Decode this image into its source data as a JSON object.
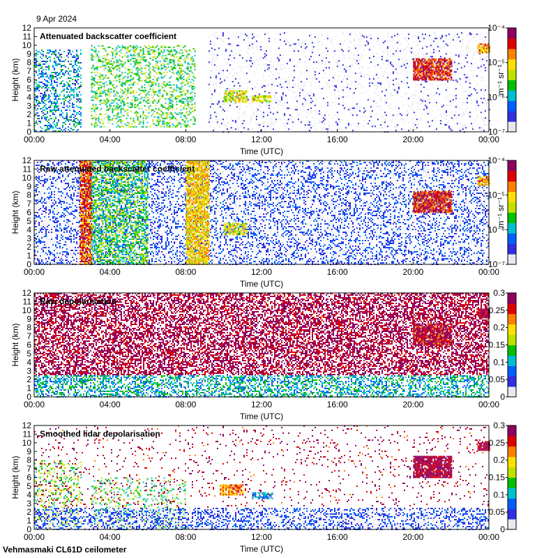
{
  "header": {
    "date": "9 Apr 2024"
  },
  "footer": {
    "site": "Vehmasmaki CL61D ceilometer"
  },
  "colors": {
    "plot_bg": "#ffffff",
    "axis": "#000000"
  },
  "chart_data": [
    {
      "type": "heatmap",
      "title": "Attenuated backscatter coefficient",
      "xlabel": "Time (UTC)",
      "ylabel": "Height (km)",
      "x_ticks": [
        "00:00",
        "04:00",
        "08:00",
        "12:00",
        "16:00",
        "20:00",
        "00:00"
      ],
      "y_ticks": [
        "0",
        "1",
        "2",
        "3",
        "4",
        "5",
        "6",
        "7",
        "8",
        "9",
        "10",
        "11",
        "12"
      ],
      "ylim": [
        0,
        12
      ],
      "colorbar": {
        "scale": "log",
        "ticks": [
          "10⁻⁷",
          "10⁻⁶",
          "10⁻⁵",
          "10⁻⁴"
        ],
        "unit": "m⁻¹ sr⁻¹"
      },
      "features": [
        {
          "t0": 0.0,
          "t1": 2.5,
          "h0": 0.0,
          "h1": 9.5,
          "level": 0.3,
          "density": 0.35
        },
        {
          "t0": 3.0,
          "t1": 8.5,
          "h0": 0.5,
          "h1": 10.0,
          "level": 0.45,
          "density": 0.3
        },
        {
          "t0": 9.2,
          "t1": 24.0,
          "h0": 0.0,
          "h1": 11.5,
          "level": 0.05,
          "density": 0.12
        },
        {
          "t0": 10.0,
          "t1": 11.2,
          "h0": 3.5,
          "h1": 4.8,
          "level": 0.6,
          "density": 0.7
        },
        {
          "t0": 11.5,
          "t1": 12.5,
          "h0": 3.5,
          "h1": 4.2,
          "level": 0.6,
          "density": 0.7
        },
        {
          "t0": 20.0,
          "t1": 22.0,
          "h0": 6.0,
          "h1": 8.5,
          "level": 0.85,
          "density": 0.85
        },
        {
          "t0": 23.4,
          "t1": 24.0,
          "h0": 9.2,
          "h1": 10.2,
          "level": 0.7,
          "density": 0.8
        }
      ]
    },
    {
      "type": "heatmap",
      "title": "Raw attenuated backscatter coefficient",
      "xlabel": "Time (UTC)",
      "ylabel": "Height (km)",
      "x_ticks": [
        "00:00",
        "04:00",
        "08:00",
        "12:00",
        "16:00",
        "20:00",
        "00:00"
      ],
      "y_ticks": [
        "0",
        "1",
        "2",
        "3",
        "4",
        "5",
        "6",
        "7",
        "8",
        "9",
        "10",
        "11",
        "12"
      ],
      "ylim": [
        0,
        12
      ],
      "colorbar": {
        "scale": "log",
        "ticks": [
          "10⁻⁷",
          "10⁻⁶",
          "10⁻⁵",
          "10⁻⁴"
        ],
        "unit": "m⁻¹ sr⁻¹"
      },
      "features": [
        {
          "t0": 0.0,
          "t1": 24.0,
          "h0": 0.0,
          "h1": 12.0,
          "level": 0.15,
          "density": 0.35
        },
        {
          "t0": 2.4,
          "t1": 3.0,
          "h0": 0.0,
          "h1": 12.0,
          "level": 0.8,
          "density": 0.85
        },
        {
          "t0": 8.0,
          "t1": 9.2,
          "h0": 0.0,
          "h1": 12.0,
          "level": 0.65,
          "density": 0.8
        },
        {
          "t0": 3.0,
          "t1": 6.0,
          "h0": 0.0,
          "h1": 12.0,
          "level": 0.45,
          "density": 0.5
        },
        {
          "t0": 10.0,
          "t1": 11.2,
          "h0": 3.5,
          "h1": 4.8,
          "level": 0.6,
          "density": 0.75
        },
        {
          "t0": 20.0,
          "t1": 22.0,
          "h0": 6.0,
          "h1": 8.5,
          "level": 0.85,
          "density": 0.85
        },
        {
          "t0": 23.4,
          "t1": 24.0,
          "h0": 9.2,
          "h1": 10.2,
          "level": 0.7,
          "density": 0.8
        }
      ]
    },
    {
      "type": "heatmap",
      "title": "Raw depolarisation",
      "xlabel": "Time (UTC)",
      "ylabel": "Height (km)",
      "x_ticks": [
        "00:00",
        "04:00",
        "08:00",
        "12:00",
        "16:00",
        "20:00",
        "00:00"
      ],
      "y_ticks": [
        "0",
        "1",
        "2",
        "3",
        "4",
        "5",
        "6",
        "7",
        "8",
        "9",
        "10",
        "11",
        "12"
      ],
      "ylim": [
        0,
        12
      ],
      "colorbar": {
        "scale": "linear",
        "ticks": [
          "0",
          "0.05",
          "0.1",
          "0.15",
          "0.2",
          "0.25",
          "0.3"
        ],
        "unit": ""
      },
      "features": [
        {
          "t0": 0.0,
          "t1": 24.0,
          "h0": 2.5,
          "h1": 12.0,
          "level": 0.95,
          "density": 0.55
        },
        {
          "t0": 0.0,
          "t1": 24.0,
          "h0": 0.0,
          "h1": 2.5,
          "level": 0.35,
          "density": 0.45
        },
        {
          "t0": 20.0,
          "t1": 22.0,
          "h0": 6.0,
          "h1": 8.5,
          "level": 0.9,
          "density": 0.85
        },
        {
          "t0": 23.4,
          "t1": 24.0,
          "h0": 9.2,
          "h1": 10.2,
          "level": 0.95,
          "density": 0.9
        }
      ]
    },
    {
      "type": "heatmap",
      "title": "Smoothed lidar depolarisation",
      "xlabel": "Time (UTC)",
      "ylabel": "Height (km)",
      "x_ticks": [
        "00:00",
        "04:00",
        "08:00",
        "12:00",
        "16:00",
        "20:00",
        "00:00"
      ],
      "y_ticks": [
        "0",
        "1",
        "2",
        "3",
        "4",
        "5",
        "6",
        "7",
        "8",
        "9",
        "10",
        "11",
        "12"
      ],
      "ylim": [
        0,
        12
      ],
      "colorbar": {
        "scale": "linear",
        "ticks": [
          "0",
          "0.05",
          "0.1",
          "0.15",
          "0.2",
          "0.25",
          "0.3"
        ],
        "unit": ""
      },
      "features": [
        {
          "t0": 0.0,
          "t1": 2.5,
          "h0": 0.0,
          "h1": 8.0,
          "level": 0.5,
          "density": 0.2
        },
        {
          "t0": 3.0,
          "t1": 8.0,
          "h0": 0.0,
          "h1": 6.0,
          "level": 0.45,
          "density": 0.15
        },
        {
          "t0": 0.0,
          "t1": 24.0,
          "h0": 0.0,
          "h1": 2.5,
          "level": 0.15,
          "density": 0.45
        },
        {
          "t0": 0.0,
          "t1": 24.0,
          "h0": 2.5,
          "h1": 12.0,
          "level": 0.92,
          "density": 0.05
        },
        {
          "t0": 9.8,
          "t1": 11.0,
          "h0": 4.0,
          "h1": 5.2,
          "level": 0.75,
          "density": 0.8
        },
        {
          "t0": 11.5,
          "t1": 12.6,
          "h0": 3.5,
          "h1": 4.3,
          "level": 0.3,
          "density": 0.7
        },
        {
          "t0": 20.0,
          "t1": 22.0,
          "h0": 6.0,
          "h1": 8.5,
          "level": 0.95,
          "density": 0.9
        },
        {
          "t0": 23.4,
          "t1": 24.0,
          "h0": 9.2,
          "h1": 10.2,
          "level": 0.95,
          "density": 0.9
        }
      ]
    }
  ]
}
